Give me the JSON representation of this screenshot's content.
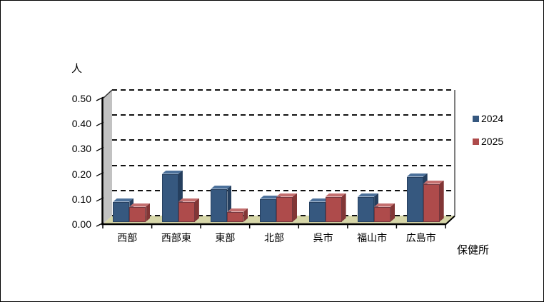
{
  "chart_data": {
    "type": "bar",
    "style": "3d-clustered-column",
    "title": "",
    "ylabel": "人",
    "xlabel": "保健所",
    "categories": [
      "西部",
      "西部東",
      "東部",
      "北部",
      "呉市",
      "福山市",
      "広島市"
    ],
    "series": [
      {
        "name": "2024",
        "color": "#36587f",
        "color_top": "#4c719b",
        "color_side": "#253f5e",
        "values": [
          0.08,
          0.19,
          0.13,
          0.09,
          0.08,
          0.1,
          0.18
        ]
      },
      {
        "name": "2025",
        "color": "#ae4b4b",
        "color_top": "#c46f6f",
        "color_side": "#823636",
        "values": [
          0.06,
          0.08,
          0.04,
          0.1,
          0.1,
          0.06,
          0.15
        ]
      }
    ],
    "ylim": [
      0,
      0.5
    ],
    "ytick_step": 0.1,
    "ytick_labels": [
      "0.00",
      "0.10",
      "0.20",
      "0.30",
      "0.40",
      "0.50"
    ],
    "grid": "horizontal-dashed",
    "legend_position": "right"
  },
  "colors": {
    "plot_background": "#ffffff",
    "left_wall": "#c2c2c2",
    "floor": "#d6d6a8",
    "gridline": "#111111",
    "axis_line": "#000000",
    "outer_border": "#000000"
  }
}
